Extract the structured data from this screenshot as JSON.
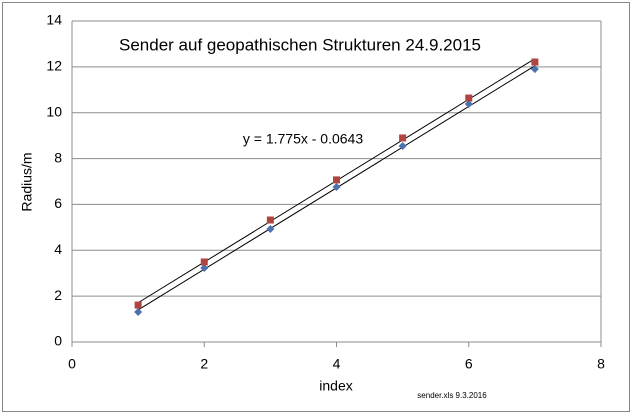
{
  "chart_data": {
    "type": "scatter",
    "title": "Sender auf geopathischen Strukturen  24.9.2015",
    "x_label": "index",
    "y_label": "Radius/m",
    "annotation": "y = 1.775x - 0.0643",
    "footnote": "sender.xls  9.3.2016",
    "x": [
      1,
      2,
      3,
      4,
      5,
      6,
      7
    ],
    "series": [
      {
        "color": "#4a72b0",
        "marker": "diamond",
        "values": [
          1.31,
          3.23,
          4.93,
          6.76,
          8.55,
          10.38,
          11.9
        ]
      },
      {
        "color": "#b0443f",
        "marker": "square",
        "values": [
          1.61,
          3.49,
          5.32,
          7.07,
          8.9,
          10.64,
          12.21
        ]
      }
    ],
    "trendline": true,
    "xlim": [
      0,
      8
    ],
    "xticks": [
      0,
      2,
      4,
      6,
      8
    ],
    "ylim": [
      0,
      14
    ],
    "yticks": [
      0,
      2,
      4,
      6,
      8,
      10,
      12,
      14
    ],
    "grid": true
  }
}
